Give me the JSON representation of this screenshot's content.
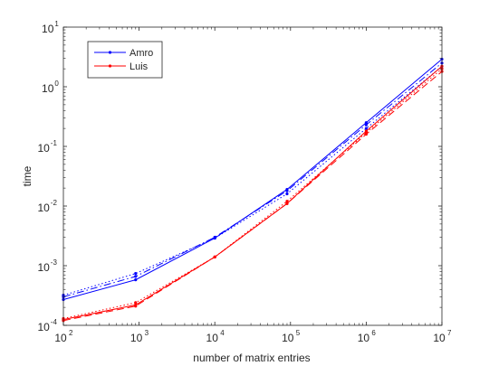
{
  "chart_data": {
    "type": "line",
    "xlabel": "number of matrix entries",
    "ylabel": "time",
    "x_scale": "log",
    "y_scale": "log",
    "xlim": [
      100,
      10000000
    ],
    "ylim": [
      0.0001,
      10
    ],
    "x_ticks": [
      {
        "value": 100,
        "base": "10",
        "exp": "2"
      },
      {
        "value": 1000,
        "base": "10",
        "exp": "3"
      },
      {
        "value": 10000,
        "base": "10",
        "exp": "4"
      },
      {
        "value": 100000,
        "base": "10",
        "exp": "5"
      },
      {
        "value": 1000000,
        "base": "10",
        "exp": "6"
      },
      {
        "value": 10000000,
        "base": "10",
        "exp": "7"
      }
    ],
    "y_ticks": [
      {
        "value": 0.0001,
        "base": "10",
        "exp": "-4"
      },
      {
        "value": 0.001,
        "base": "10",
        "exp": "-3"
      },
      {
        "value": 0.01,
        "base": "10",
        "exp": "-2"
      },
      {
        "value": 0.1,
        "base": "10",
        "exp": "-1"
      },
      {
        "value": 1,
        "base": "10",
        "exp": "0"
      },
      {
        "value": 10,
        "base": "10",
        "exp": "1"
      }
    ],
    "grid": false,
    "legend_position": "top-left",
    "legend": [
      {
        "label": "Amro",
        "color": "#0000ff"
      },
      {
        "label": "Luis",
        "color": "#ff0000"
      }
    ],
    "series": [
      {
        "group": "Amro",
        "color": "#0000ff",
        "dash": "solid",
        "points": [
          [
            100,
            0.00027
          ],
          [
            900,
            0.00058
          ],
          [
            10000,
            0.0029
          ],
          [
            90000,
            0.019
          ],
          [
            1000000,
            0.25
          ],
          [
            10000000,
            2.9
          ]
        ]
      },
      {
        "group": "Amro",
        "color": "#0000ff",
        "dash": "dashdot",
        "points": [
          [
            100,
            0.0003
          ],
          [
            900,
            0.00066
          ],
          [
            10000,
            0.003
          ],
          [
            90000,
            0.018
          ],
          [
            1000000,
            0.23
          ],
          [
            10000000,
            2.5
          ]
        ]
      },
      {
        "group": "Amro",
        "color": "#0000ff",
        "dash": "dotted",
        "points": [
          [
            100,
            0.00032
          ],
          [
            900,
            0.00074
          ],
          [
            10000,
            0.0029
          ],
          [
            90000,
            0.016
          ],
          [
            1000000,
            0.2
          ],
          [
            10000000,
            2.2
          ]
        ]
      },
      {
        "group": "Luis",
        "color": "#ff0000",
        "dash": "solid",
        "points": [
          [
            100,
            0.000125
          ],
          [
            900,
            0.00022
          ],
          [
            10000,
            0.0014
          ],
          [
            90000,
            0.011
          ],
          [
            1000000,
            0.18
          ],
          [
            10000000,
            2.2
          ]
        ]
      },
      {
        "group": "Luis",
        "color": "#ff0000",
        "dash": "dashed",
        "points": [
          [
            100,
            0.00012
          ],
          [
            900,
            0.00021
          ],
          [
            10000,
            0.0014
          ],
          [
            90000,
            0.011
          ],
          [
            1000000,
            0.16
          ],
          [
            10000000,
            1.8
          ]
        ]
      },
      {
        "group": "Luis",
        "color": "#ff0000",
        "dash": "dotted",
        "points": [
          [
            100,
            0.00013
          ],
          [
            900,
            0.00024
          ],
          [
            10000,
            0.0014
          ],
          [
            90000,
            0.012
          ],
          [
            1000000,
            0.17
          ],
          [
            10000000,
            2.0
          ]
        ]
      }
    ]
  }
}
